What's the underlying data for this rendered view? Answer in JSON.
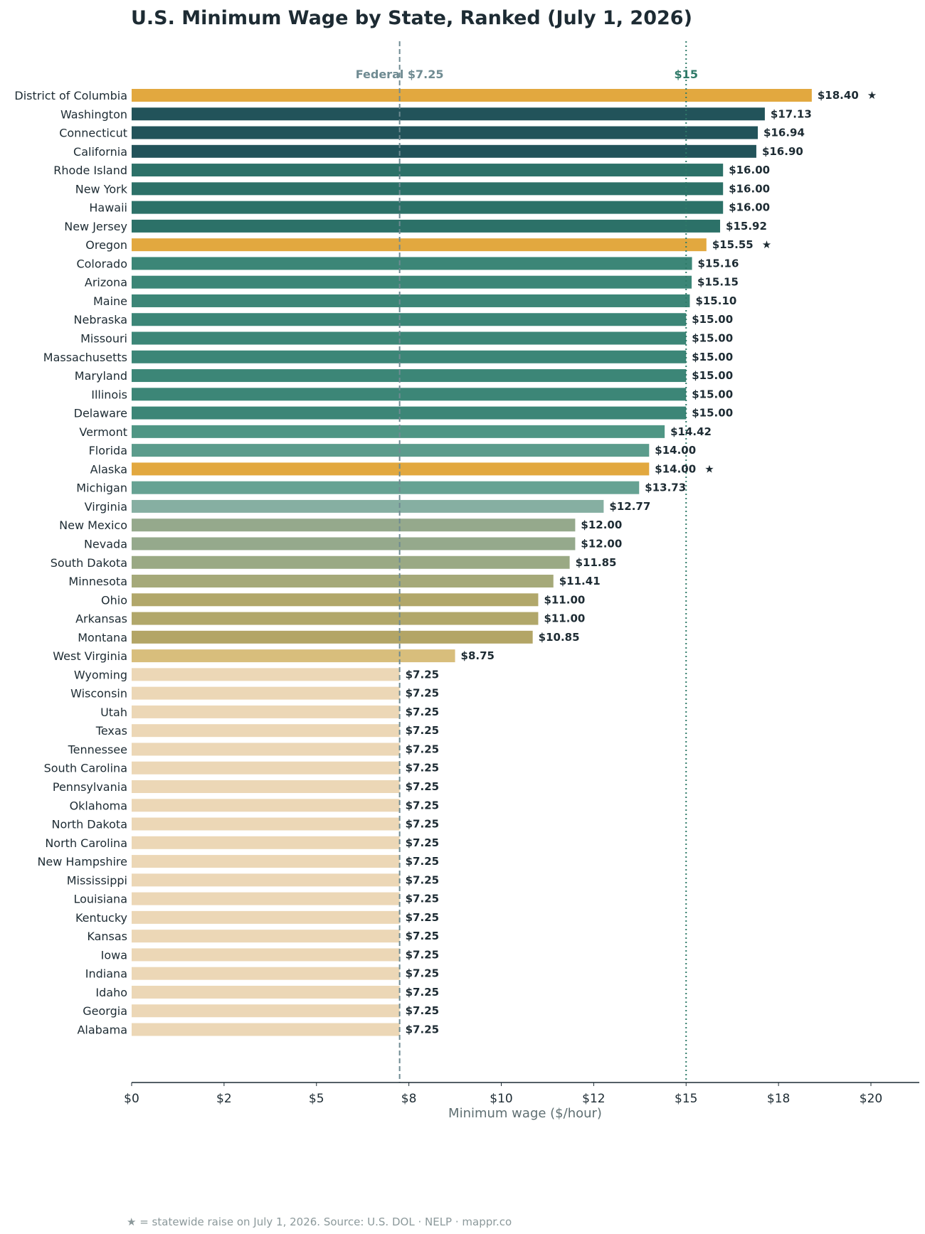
{
  "chart_data": {
    "type": "bar",
    "orientation": "horizontal",
    "title": "U.S. Minimum Wage by State, Ranked (July 1, 2026)",
    "xlabel": "Minimum wage ($/hour)",
    "ylabel": "",
    "xlim": [
      0,
      21.3
    ],
    "x_ticks": [
      {
        "value": 0,
        "label": "$0"
      },
      {
        "value": 2.5,
        "label": "$2"
      },
      {
        "value": 5,
        "label": "$5"
      },
      {
        "value": 7.5,
        "label": "$8"
      },
      {
        "value": 10,
        "label": "$10"
      },
      {
        "value": 12.5,
        "label": "$12"
      },
      {
        "value": 15,
        "label": "$15"
      },
      {
        "value": 17.5,
        "label": "$18"
      },
      {
        "value": 20,
        "label": "$20"
      }
    ],
    "grid": false,
    "reference_lines": [
      {
        "value": 7.25,
        "label": "Federal $7.25",
        "style": "dashed",
        "color": "#6f8b92"
      },
      {
        "value": 15,
        "label": "$15",
        "style": "dotted",
        "color": "#2f7a68"
      }
    ],
    "highlight_color": "#e2a83f",
    "marker_symbol": "★",
    "categories": [
      "District of Columbia",
      "Washington",
      "Connecticut",
      "California",
      "Rhode Island",
      "New York",
      "Hawaii",
      "New Jersey",
      "Oregon",
      "Colorado",
      "Arizona",
      "Maine",
      "Nebraska",
      "Missouri",
      "Massachusetts",
      "Maryland",
      "Illinois",
      "Delaware",
      "Vermont",
      "Florida",
      "Alaska",
      "Michigan",
      "Virginia",
      "New Mexico",
      "Nevada",
      "South Dakota",
      "Minnesota",
      "Ohio",
      "Arkansas",
      "Montana",
      "West Virginia",
      "Wyoming",
      "Wisconsin",
      "Utah",
      "Texas",
      "Tennessee",
      "South Carolina",
      "Pennsylvania",
      "Oklahoma",
      "North Dakota",
      "North Carolina",
      "New Hampshire",
      "Mississippi",
      "Louisiana",
      "Kentucky",
      "Kansas",
      "Iowa",
      "Indiana",
      "Idaho",
      "Georgia",
      "Alabama"
    ],
    "values": [
      18.4,
      17.13,
      16.94,
      16.9,
      16.0,
      16.0,
      16.0,
      15.92,
      15.55,
      15.16,
      15.15,
      15.1,
      15.0,
      15.0,
      15.0,
      15.0,
      15.0,
      15.0,
      14.42,
      14.0,
      14.0,
      13.73,
      12.77,
      12.0,
      12.0,
      11.85,
      11.41,
      11.0,
      11.0,
      10.85,
      8.75,
      7.25,
      7.25,
      7.25,
      7.25,
      7.25,
      7.25,
      7.25,
      7.25,
      7.25,
      7.25,
      7.25,
      7.25,
      7.25,
      7.25,
      7.25,
      7.25,
      7.25,
      7.25,
      7.25,
      7.25
    ],
    "value_labels": [
      "$18.40",
      "$17.13",
      "$16.94",
      "$16.90",
      "$16.00",
      "$16.00",
      "$16.00",
      "$15.92",
      "$15.55",
      "$15.16",
      "$15.15",
      "$15.10",
      "$15.00",
      "$15.00",
      "$15.00",
      "$15.00",
      "$15.00",
      "$15.00",
      "$14.42",
      "$14.00",
      "$14.00",
      "$13.73",
      "$12.77",
      "$12.00",
      "$12.00",
      "$11.85",
      "$11.41",
      "$11.00",
      "$11.00",
      "$10.85",
      "$8.75",
      "$7.25",
      "$7.25",
      "$7.25",
      "$7.25",
      "$7.25",
      "$7.25",
      "$7.25",
      "$7.25",
      "$7.25",
      "$7.25",
      "$7.25",
      "$7.25",
      "$7.25",
      "$7.25",
      "$7.25",
      "$7.25",
      "$7.25",
      "$7.25",
      "$7.25",
      "$7.25"
    ],
    "starred": [
      "District of Columbia",
      "Oregon",
      "Alaska"
    ],
    "bar_colors": [
      "#e2a83f",
      "#22535a",
      "#22535a",
      "#22535a",
      "#2c7168",
      "#2c7168",
      "#2c7168",
      "#2c7168",
      "#e2a83f",
      "#3c8677",
      "#3c8677",
      "#3c8677",
      "#3c8677",
      "#3c8677",
      "#3c8677",
      "#3c8677",
      "#3c8677",
      "#3c8677",
      "#4f9684",
      "#5b9c8c",
      "#e2a83f",
      "#66a293",
      "#86afa2",
      "#95a98c",
      "#95a98c",
      "#9aa984",
      "#a5a979",
      "#b1a76a",
      "#b1a76a",
      "#b3a566",
      "#d8be7c",
      "#ecd7b6",
      "#ecd7b6",
      "#ecd7b6",
      "#ecd7b6",
      "#ecd7b6",
      "#ecd7b6",
      "#ecd7b6",
      "#ecd7b6",
      "#ecd7b6",
      "#ecd7b6",
      "#ecd7b6",
      "#ecd7b6",
      "#ecd7b6",
      "#ecd7b6",
      "#ecd7b6",
      "#ecd7b6",
      "#ecd7b6",
      "#ecd7b6",
      "#ecd7b6",
      "#ecd7b6"
    ]
  },
  "footnote": "★ = statewide raise on July 1, 2026.  Source: U.S. DOL · NELP · mappr.co"
}
